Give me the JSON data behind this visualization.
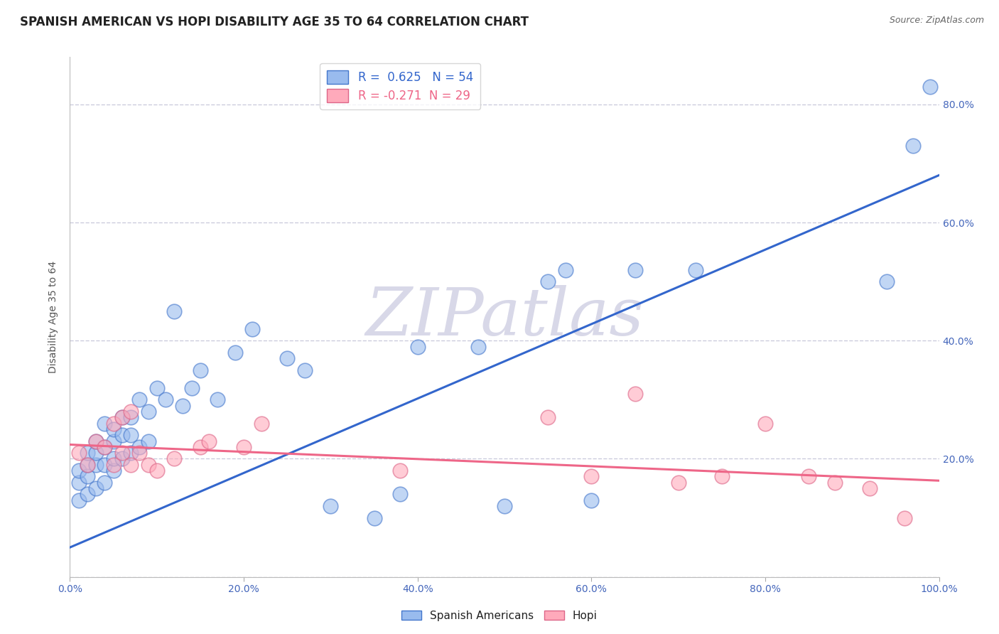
{
  "title": "SPANISH AMERICAN VS HOPI DISABILITY AGE 35 TO 64 CORRELATION CHART",
  "source": "Source: ZipAtlas.com",
  "ylabel": "Disability Age 35 to 64",
  "xlim": [
    0,
    1.0
  ],
  "ylim": [
    0,
    0.88
  ],
  "xticks": [
    0.0,
    0.2,
    0.4,
    0.6,
    0.8,
    1.0
  ],
  "yticks": [
    0.0,
    0.2,
    0.4,
    0.6,
    0.8
  ],
  "xtick_labels": [
    "0.0%",
    "20.0%",
    "40.0%",
    "60.0%",
    "80.0%",
    "100.0%"
  ],
  "ytick_labels_right": [
    "",
    "20.0%",
    "40.0%",
    "60.0%",
    "80.0%"
  ],
  "blue_R": 0.625,
  "blue_N": 54,
  "pink_R": -0.271,
  "pink_N": 29,
  "blue_scatter_x": [
    0.01,
    0.01,
    0.01,
    0.02,
    0.02,
    0.02,
    0.02,
    0.03,
    0.03,
    0.03,
    0.03,
    0.04,
    0.04,
    0.04,
    0.04,
    0.05,
    0.05,
    0.05,
    0.05,
    0.06,
    0.06,
    0.06,
    0.07,
    0.07,
    0.07,
    0.08,
    0.08,
    0.09,
    0.09,
    0.1,
    0.11,
    0.12,
    0.13,
    0.14,
    0.15,
    0.17,
    0.19,
    0.21,
    0.25,
    0.27,
    0.3,
    0.35,
    0.38,
    0.4,
    0.47,
    0.5,
    0.55,
    0.57,
    0.6,
    0.65,
    0.72,
    0.94,
    0.97,
    0.99
  ],
  "blue_scatter_y": [
    0.13,
    0.16,
    0.18,
    0.14,
    0.17,
    0.19,
    0.21,
    0.15,
    0.19,
    0.21,
    0.23,
    0.16,
    0.19,
    0.22,
    0.26,
    0.18,
    0.2,
    0.23,
    0.25,
    0.2,
    0.24,
    0.27,
    0.21,
    0.24,
    0.27,
    0.22,
    0.3,
    0.23,
    0.28,
    0.32,
    0.3,
    0.45,
    0.29,
    0.32,
    0.35,
    0.3,
    0.38,
    0.42,
    0.37,
    0.35,
    0.12,
    0.1,
    0.14,
    0.39,
    0.39,
    0.12,
    0.5,
    0.52,
    0.13,
    0.52,
    0.52,
    0.5,
    0.73,
    0.83
  ],
  "pink_scatter_x": [
    0.01,
    0.02,
    0.03,
    0.04,
    0.05,
    0.05,
    0.06,
    0.06,
    0.07,
    0.07,
    0.08,
    0.09,
    0.1,
    0.12,
    0.15,
    0.16,
    0.2,
    0.22,
    0.38,
    0.55,
    0.6,
    0.65,
    0.7,
    0.75,
    0.8,
    0.85,
    0.88,
    0.92,
    0.96
  ],
  "pink_scatter_y": [
    0.21,
    0.19,
    0.23,
    0.22,
    0.19,
    0.26,
    0.21,
    0.27,
    0.19,
    0.28,
    0.21,
    0.19,
    0.18,
    0.2,
    0.22,
    0.23,
    0.22,
    0.26,
    0.18,
    0.27,
    0.17,
    0.31,
    0.16,
    0.17,
    0.26,
    0.17,
    0.16,
    0.15,
    0.1
  ],
  "blue_line_x": [
    0.0,
    1.0
  ],
  "blue_line_y_start": 0.05,
  "blue_line_y_end": 0.68,
  "pink_line_x": [
    0.0,
    1.0
  ],
  "pink_line_y_start": 0.224,
  "pink_line_y_end": 0.163,
  "blue_scatter_color": "#99BBEE",
  "blue_scatter_edge": "#4477CC",
  "pink_scatter_color": "#FFAABB",
  "pink_scatter_edge": "#DD6688",
  "blue_line_color": "#3366CC",
  "pink_line_color": "#EE6688",
  "watermark_text": "ZIPatlas",
  "watermark_color": "#D8D8E8",
  "background_color": "#FFFFFF",
  "grid_color": "#CCCCDD",
  "title_fontsize": 12,
  "source_fontsize": 9,
  "axis_label_fontsize": 10,
  "tick_fontsize": 10,
  "legend_fontsize": 12
}
